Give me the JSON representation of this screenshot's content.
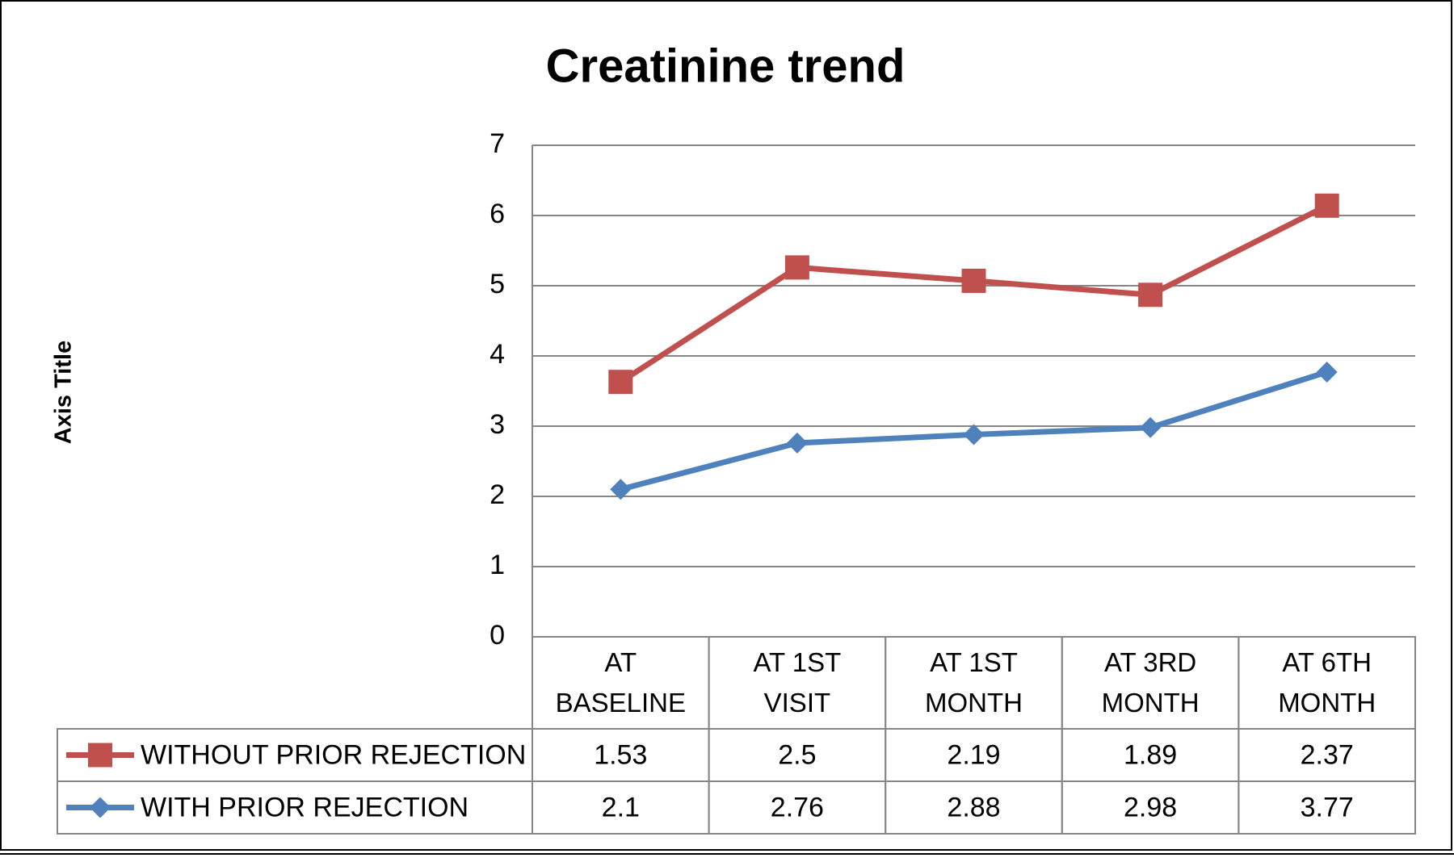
{
  "chart_data": {
    "type": "line",
    "stacked": true,
    "title": "Creatinine trend",
    "y_label": "Axis Title",
    "categories": [
      "AT BASELINE",
      "AT 1ST VISIT",
      "AT 1ST MONTH",
      "AT 3RD MONTH",
      "AT 6TH MONTH"
    ],
    "series": [
      {
        "name": "WITHOUT PRIOR REJECTION",
        "color": "#c0504d",
        "marker": "square",
        "values": [
          1.53,
          2.5,
          2.19,
          1.89,
          2.37
        ]
      },
      {
        "name": "WITH PRIOR REJECTION",
        "color": "#4f81bd",
        "marker": "diamond",
        "values": [
          2.1,
          2.76,
          2.88,
          2.98,
          3.77
        ]
      }
    ],
    "ylim": [
      0,
      7
    ],
    "yticks": [
      0,
      1,
      2,
      3,
      4,
      5,
      6,
      7
    ],
    "grid": true,
    "data_table": true
  }
}
